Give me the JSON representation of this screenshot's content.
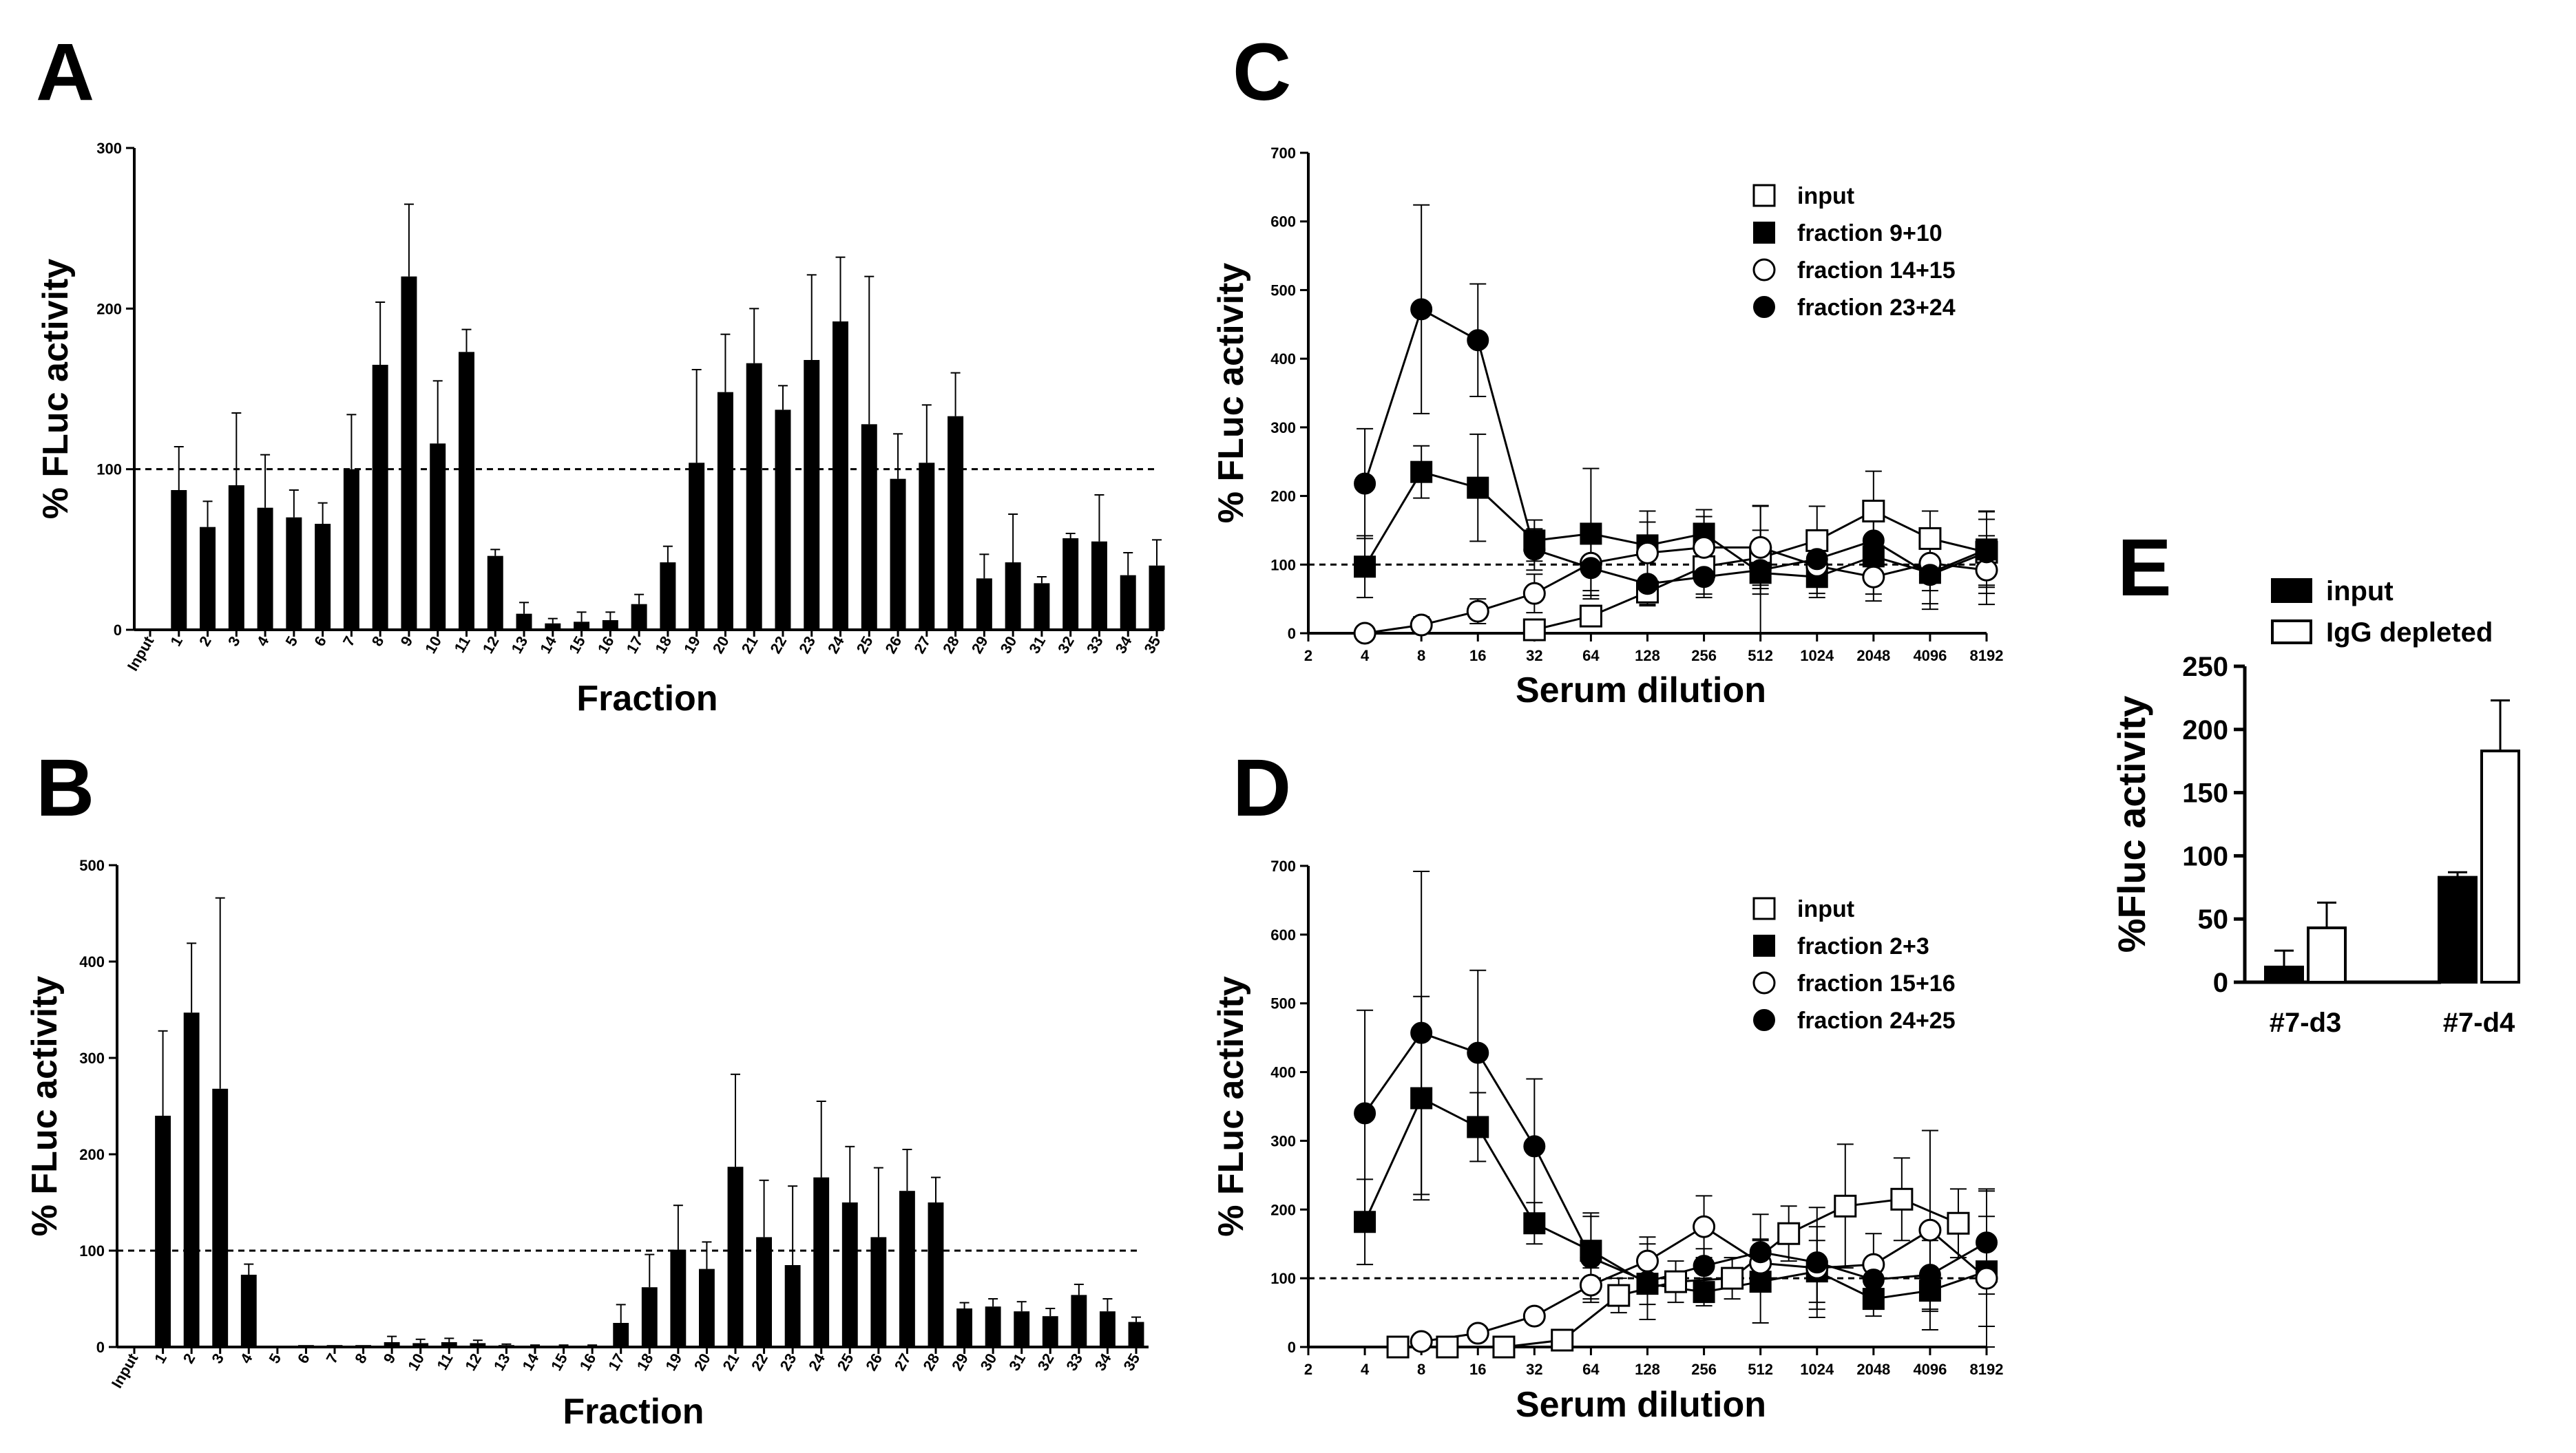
{
  "panels": [
    {
      "key": "A",
      "label": "A"
    },
    {
      "key": "B",
      "label": "B"
    },
    {
      "key": "C",
      "label": "C"
    },
    {
      "key": "D",
      "label": "D"
    },
    {
      "key": "E",
      "label": "E"
    }
  ],
  "chart_data": [
    {
      "panel": "A",
      "type": "bar",
      "xlabel": "Fraction",
      "ylabel": "% FLuc activity",
      "ylim": [
        0,
        300
      ],
      "yticks": [
        0,
        100,
        200,
        300
      ],
      "reference_line": 100,
      "categories": [
        "Input",
        "1",
        "2",
        "3",
        "4",
        "5",
        "6",
        "7",
        "8",
        "9",
        "10",
        "11",
        "12",
        "13",
        "14",
        "15",
        "16",
        "17",
        "18",
        "19",
        "20",
        "21",
        "22",
        "23",
        "24",
        "25",
        "26",
        "27",
        "28",
        "29",
        "30",
        "31",
        "32",
        "33",
        "34",
        "35"
      ],
      "values": [
        0,
        87,
        64,
        90,
        76,
        70,
        66,
        100,
        165,
        220,
        116,
        173,
        46,
        10,
        4,
        5,
        6,
        16,
        42,
        104,
        148,
        166,
        137,
        168,
        192,
        128,
        94,
        104,
        133,
        32,
        42,
        29,
        57,
        55,
        34,
        40
      ],
      "errors": [
        0,
        27,
        16,
        45,
        33,
        17,
        13,
        34,
        39,
        45,
        39,
        14,
        4,
        7,
        3,
        6,
        5,
        6,
        10,
        58,
        36,
        34,
        15,
        53,
        40,
        92,
        28,
        36,
        27,
        15,
        30,
        4,
        3,
        29,
        14,
        16
      ]
    },
    {
      "panel": "B",
      "type": "bar",
      "xlabel": "Fraction",
      "ylabel": "% FLuc activity",
      "ylim": [
        0,
        500
      ],
      "yticks": [
        0,
        100,
        200,
        300,
        400,
        500
      ],
      "reference_line": 100,
      "categories": [
        "Input",
        "1",
        "2",
        "3",
        "4",
        "5",
        "6",
        "7",
        "8",
        "9",
        "10",
        "11",
        "12",
        "13",
        "14",
        "15",
        "16",
        "17",
        "18",
        "19",
        "20",
        "21",
        "22",
        "23",
        "24",
        "25",
        "26",
        "27",
        "28",
        "29",
        "30",
        "31",
        "32",
        "33",
        "34",
        "35"
      ],
      "values": [
        0,
        240,
        347,
        268,
        75,
        1,
        2,
        2,
        2,
        5,
        4,
        5,
        4,
        2,
        1,
        1,
        1,
        25,
        62,
        101,
        81,
        187,
        114,
        85,
        176,
        150,
        114,
        162,
        150,
        40,
        42,
        37,
        32,
        54,
        37,
        26
      ],
      "errors": [
        0,
        88,
        72,
        198,
        11,
        0,
        0,
        0,
        0,
        6,
        4,
        4,
        3,
        1,
        1,
        1,
        1,
        19,
        34,
        46,
        28,
        96,
        59,
        82,
        79,
        58,
        72,
        43,
        26,
        6,
        8,
        10,
        8,
        11,
        13,
        5
      ]
    },
    {
      "panel": "C",
      "type": "line",
      "xlabel": "Serum dilution",
      "ylabel": "% FLuc activity",
      "x": [
        "2",
        "4",
        "8",
        "16",
        "32",
        "64",
        "128",
        "256",
        "512",
        "1024",
        "2048",
        "4096",
        "8192"
      ],
      "ylim": [
        0,
        700
      ],
      "yticks": [
        0,
        100,
        200,
        300,
        400,
        500,
        600,
        700
      ],
      "reference_line": 100,
      "series": [
        {
          "name": "input",
          "marker": "open-square",
          "x": [
            32,
            64,
            128,
            256,
            512,
            1024,
            2048,
            4096,
            8192
          ],
          "values": [
            5,
            25,
            60,
            97,
            110,
            135,
            178,
            138,
            118
          ],
          "errors": [
            8,
            12,
            20,
            40,
            40,
            50,
            58,
            40,
            48
          ]
        },
        {
          "name": "fraction 9+10",
          "marker": "filled-square",
          "x": [
            4,
            8,
            16,
            32,
            64,
            128,
            256,
            512,
            1024,
            2048,
            4096,
            8192
          ],
          "values": [
            97,
            235,
            212,
            135,
            145,
            128,
            145,
            88,
            82,
            112,
            88,
            122
          ],
          "errors": [
            45,
            38,
            78,
            30,
            95,
            50,
            35,
            98,
            30,
            55,
            45,
            55
          ]
        },
        {
          "name": "fraction 14+15",
          "marker": "open-circle",
          "x": [
            4,
            8,
            16,
            32,
            64,
            128,
            256,
            512,
            1024,
            2048,
            4096,
            8192
          ],
          "values": [
            0,
            12,
            32,
            58,
            102,
            117,
            125,
            125,
            98,
            82,
            102,
            92
          ],
          "errors": [
            4,
            12,
            18,
            28,
            40,
            45,
            45,
            60,
            40,
            35,
            40,
            50
          ]
        },
        {
          "name": "fraction 23+24",
          "marker": "filled-circle",
          "x": [
            4,
            8,
            16,
            32,
            64,
            128,
            256,
            512,
            1024,
            2048,
            4096,
            8192
          ],
          "values": [
            218,
            472,
            427,
            122,
            95,
            72,
            82,
            92,
            108,
            135,
            85,
            118
          ],
          "errors": [
            80,
            152,
            82,
            30,
            40,
            30,
            30,
            35,
            40,
            50,
            50,
            60
          ]
        }
      ]
    },
    {
      "panel": "D",
      "type": "line",
      "xlabel": "Serum dilution",
      "ylabel": "% FLuc activity",
      "x": [
        "2",
        "4",
        "8",
        "16",
        "32",
        "64",
        "128",
        "256",
        "512",
        "1024",
        "2048",
        "4096",
        "8192"
      ],
      "ylim": [
        0,
        700
      ],
      "yticks": [
        0,
        100,
        200,
        300,
        400,
        500,
        600,
        700
      ],
      "reference_line": 100,
      "series": [
        {
          "name": "input",
          "marker": "open-square",
          "x": [
            6,
            11,
            22,
            45,
            90,
            181,
            362,
            724,
            1448,
            2896,
            5792
          ],
          "values": [
            0,
            0,
            0,
            10,
            75,
            95,
            100,
            165,
            205,
            215,
            180
          ],
          "errors": [
            3,
            3,
            3,
            8,
            25,
            30,
            30,
            40,
            90,
            60,
            50
          ]
        },
        {
          "name": "fraction 2+3",
          "marker": "filled-square",
          "x": [
            4,
            8,
            16,
            32,
            64,
            128,
            256,
            512,
            1024,
            2048,
            4096,
            8192
          ],
          "values": [
            182,
            362,
            320,
            180,
            140,
            92,
            80,
            95,
            110,
            70,
            82,
            110
          ],
          "errors": [
            62,
            148,
            50,
            30,
            55,
            30,
            20,
            60,
            45,
            25,
            30,
            80
          ]
        },
        {
          "name": "fraction 15+16",
          "marker": "open-circle",
          "x": [
            8,
            16,
            32,
            64,
            128,
            256,
            512,
            1024,
            2048,
            4096,
            8192
          ],
          "values": [
            8,
            20,
            45,
            90,
            125,
            175,
            122,
            115,
            120,
            170,
            100
          ],
          "errors": [
            4,
            6,
            10,
            25,
            35,
            45,
            35,
            60,
            45,
            145,
            130
          ]
        },
        {
          "name": "fraction 24+25",
          "marker": "filled-circle",
          "x": [
            4,
            8,
            16,
            32,
            64,
            128,
            256,
            512,
            1024,
            2048,
            4096,
            8192
          ],
          "values": [
            340,
            457,
            428,
            292,
            130,
            95,
            118,
            138,
            123,
            98,
            105,
            152
          ],
          "errors": [
            150,
            235,
            120,
            98,
            60,
            55,
            25,
            55,
            80,
            20,
            50,
            75
          ]
        }
      ]
    },
    {
      "panel": "E",
      "type": "bar",
      "xlabel": "",
      "ylabel": "%Fluc activity",
      "categories": [
        "#7-d3",
        "#7-d4"
      ],
      "ylim": [
        0,
        250
      ],
      "yticks": [
        0,
        50,
        100,
        150,
        200,
        250
      ],
      "series": [
        {
          "name": "input",
          "fill": "#000000",
          "values": [
            12,
            83
          ],
          "errors": [
            13,
            4
          ]
        },
        {
          "name": "IgG depleted",
          "fill": "#ffffff",
          "values": [
            43,
            183
          ],
          "errors": [
            20,
            40
          ]
        }
      ]
    }
  ]
}
